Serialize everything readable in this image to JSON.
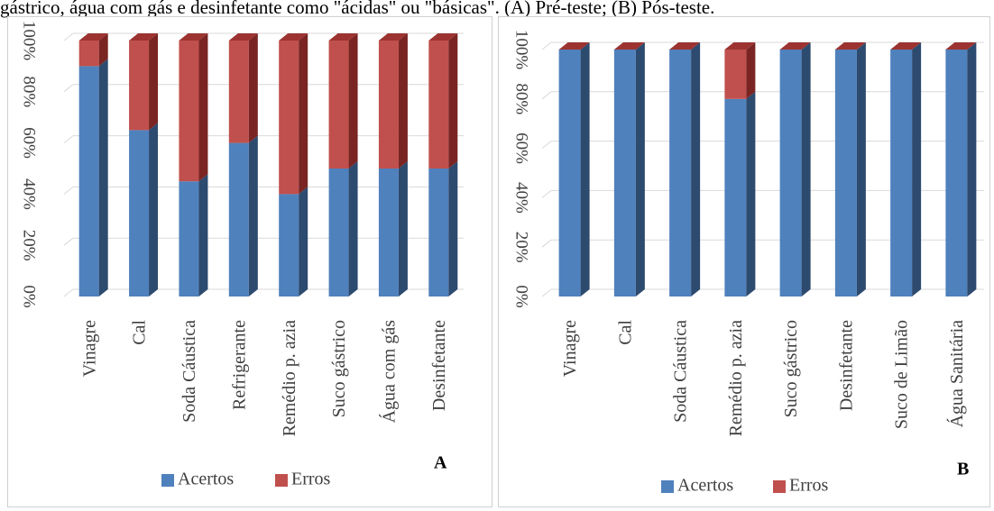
{
  "caption": "gástrico, água com gás e desinfetante como \"ácidas\" ou \"básicas\". (A) Pré-teste; (B) Pós-teste.",
  "colors": {
    "acertos": "#4f81bd",
    "acertos_side": "#2d4a6f",
    "acertos_top": "#6a97cf",
    "erros": "#c0504d",
    "erros_side": "#7a2523",
    "erros_top": "#9c3330",
    "grid": "#d9d9d9"
  },
  "chart_data": [
    {
      "type": "bar",
      "stacked": true,
      "three_d": true,
      "panel_letter": "A",
      "categories": [
        "Vinagre",
        "Cal",
        "Soda Cáustica",
        "Refrigerante",
        "Remédio p. azia",
        "Suco gástrico",
        "Água com gás",
        "Desinfetante"
      ],
      "series": [
        {
          "name": "Acertos",
          "values": [
            90,
            65,
            45,
            60,
            40,
            50,
            50,
            50
          ]
        },
        {
          "name": "Erros",
          "values": [
            10,
            35,
            55,
            40,
            60,
            50,
            50,
            50
          ]
        }
      ],
      "ylim": [
        0,
        100
      ],
      "yticks": [
        "0%",
        "20%",
        "40%",
        "60%",
        "80%",
        "100%"
      ],
      "grid": true,
      "legend": "bottom"
    },
    {
      "type": "bar",
      "stacked": true,
      "three_d": true,
      "panel_letter": "B",
      "categories": [
        "Vinagre",
        "Cal",
        "Soda Cáustica",
        "Remédio p. azia",
        "Suco gástrico",
        "Desinfetante",
        "Suco de Limão",
        "Água Sanitária"
      ],
      "series": [
        {
          "name": "Acertos",
          "values": [
            100,
            100,
            100,
            80,
            100,
            100,
            100,
            100
          ]
        },
        {
          "name": "Erros",
          "values": [
            0,
            0,
            0,
            20,
            0,
            0,
            0,
            0
          ]
        }
      ],
      "ylim": [
        0,
        100
      ],
      "yticks": [
        "0%",
        "20%",
        "40%",
        "60%",
        "80%",
        "100%"
      ],
      "grid": true,
      "legend": "bottom"
    }
  ]
}
